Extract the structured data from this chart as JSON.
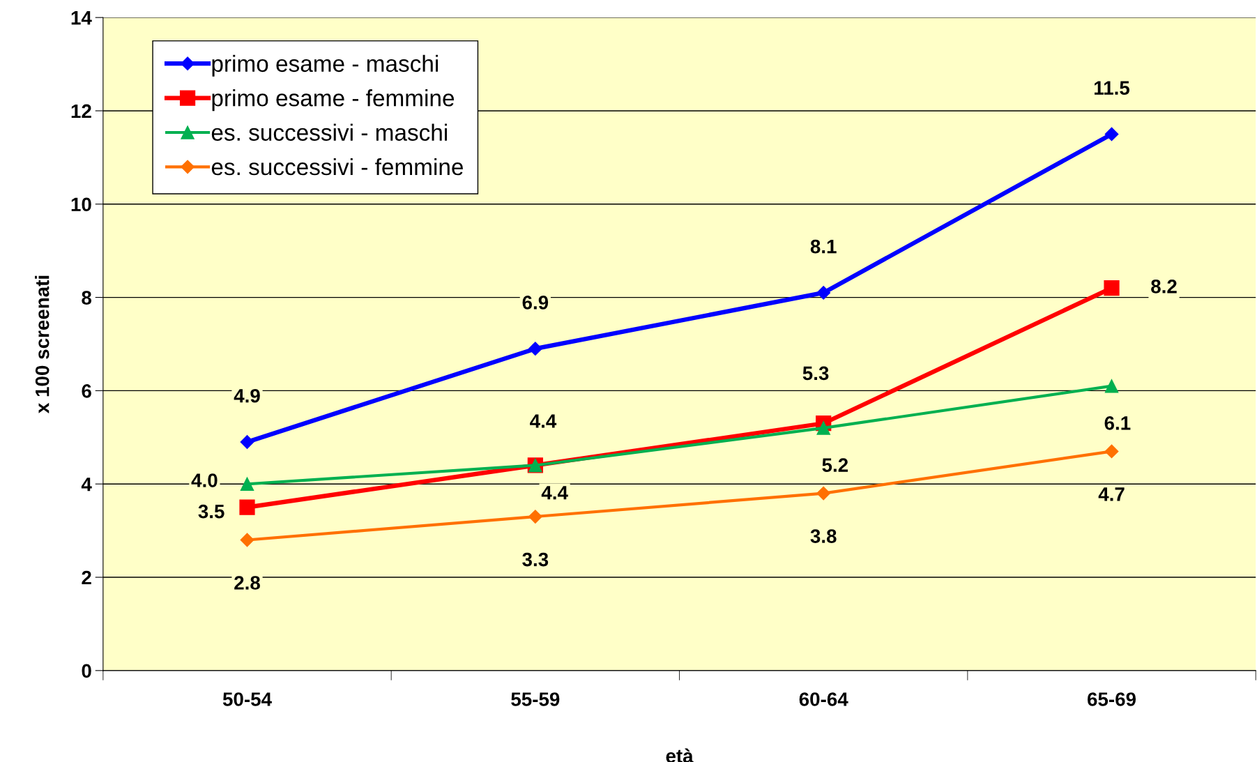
{
  "chart_data": {
    "type": "line",
    "xlabel": "età",
    "ylabel": "x 100 screenati",
    "categories": [
      "50-54",
      "55-59",
      "60-64",
      "65-69"
    ],
    "series": [
      {
        "name": "primo esame - maschi",
        "color": "#0000ff",
        "marker": "diamond",
        "values": [
          4.9,
          6.9,
          8.1,
          11.5
        ],
        "value_labels": [
          "4.9",
          "6.9",
          "8.1",
          "11.5"
        ]
      },
      {
        "name": "primo esame - femmine",
        "color": "#ff0000",
        "marker": "square",
        "values": [
          3.5,
          4.4,
          5.3,
          8.2
        ],
        "value_labels": [
          "3.5",
          "4.4",
          "5.3",
          "8.2"
        ]
      },
      {
        "name": "es. successivi - maschi",
        "color": "#00b050",
        "marker": "triangle",
        "values": [
          4.0,
          4.4,
          5.2,
          6.1
        ],
        "value_labels": [
          "4.0",
          "4.4",
          "5.2",
          "6.1"
        ]
      },
      {
        "name": "es. successivi - femmine",
        "color": "#ff7000",
        "marker": "diamond",
        "values": [
          2.8,
          3.3,
          3.8,
          4.7
        ],
        "value_labels": [
          "2.8",
          "3.3",
          "3.8",
          "4.7"
        ]
      }
    ],
    "ylim": [
      0,
      14
    ],
    "yticks": [
      0,
      2,
      4,
      6,
      8,
      10,
      12,
      14
    ],
    "grid": "y",
    "legend": "top left"
  }
}
